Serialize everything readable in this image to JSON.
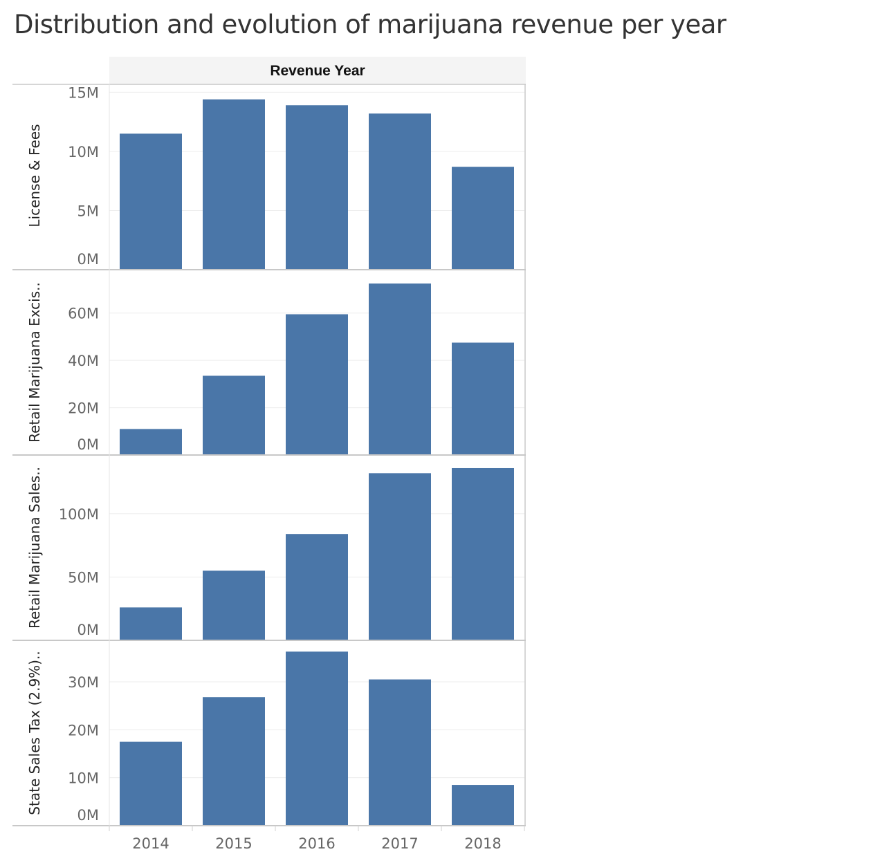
{
  "title": "Distribution and evolution of marijuana revenue per year",
  "chart_data": {
    "type": "bar",
    "column_header": "Revenue Year",
    "categories": [
      "2014",
      "2015",
      "2016",
      "2017",
      "2018"
    ],
    "bar_color": "#4a76a8",
    "grid": true,
    "panels": [
      {
        "name": "License & Fees",
        "values": [
          11.5,
          14.4,
          13.9,
          13.2,
          8.7
        ],
        "unit": "M",
        "ylim": [
          0,
          15.2
        ],
        "yticks": [
          0,
          5,
          10,
          15
        ],
        "ytick_labels": [
          "0M",
          "5M",
          "10M",
          "15M"
        ]
      },
      {
        "name": "Retail Marijuana Excis..",
        "values": [
          11,
          33.5,
          59.5,
          72.5,
          47.5
        ],
        "unit": "M",
        "ylim": [
          0,
          76
        ],
        "yticks": [
          0,
          20,
          40,
          60
        ],
        "ytick_labels": [
          "0M",
          "20M",
          "40M",
          "60M"
        ]
      },
      {
        "name": "Retail Marijuana Sales..",
        "values": [
          26,
          55,
          84,
          132,
          136
        ],
        "unit": "M",
        "ylim": [
          0,
          142
        ],
        "yticks": [
          0,
          50,
          100
        ],
        "ytick_labels": [
          "0M",
          "50M",
          "100M"
        ]
      },
      {
        "name": "State Sales Tax (2.9%)..",
        "values": [
          17.5,
          26.8,
          36.3,
          30.5,
          8.5
        ],
        "unit": "M",
        "ylim": [
          0,
          37.5
        ],
        "yticks": [
          0,
          10,
          20,
          30
        ],
        "ytick_labels": [
          "0M",
          "10M",
          "20M",
          "30M"
        ]
      }
    ]
  }
}
